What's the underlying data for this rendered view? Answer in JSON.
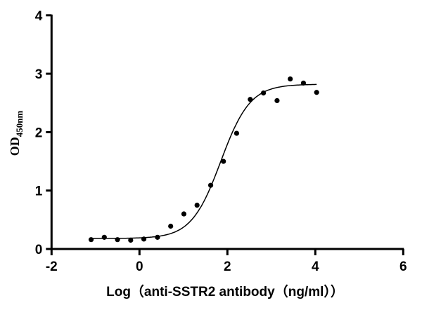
{
  "chart_data": {
    "type": "scatter",
    "title": "",
    "xlabel": "Log（anti-SSTR2 antibody（ng/ml））",
    "ylabel_main": "OD",
    "ylabel_sub": "450nm",
    "xlim": [
      -2,
      6
    ],
    "ylim": [
      0,
      4
    ],
    "xticks": [
      -2,
      0,
      2,
      4,
      6
    ],
    "yticks": [
      0,
      1,
      2,
      3,
      4
    ],
    "grid": false,
    "point_color": "#000000",
    "x": [
      -1.1,
      -0.8,
      -0.5,
      -0.2,
      0.1,
      0.41,
      0.71,
      1.01,
      1.31,
      1.62,
      1.91,
      2.21,
      2.52,
      2.82,
      3.13,
      3.43,
      3.73,
      4.03
    ],
    "y": [
      0.16,
      0.2,
      0.16,
      0.15,
      0.17,
      0.2,
      0.39,
      0.6,
      0.75,
      1.09,
      1.5,
      1.98,
      2.56,
      2.67,
      2.54,
      2.91,
      2.84,
      2.68
    ],
    "fit": {
      "model": "4PL",
      "bottom": 0.18,
      "top": 2.82,
      "logEC50": 1.85,
      "hill": 1.3,
      "x_range": [
        -1.1,
        4.03
      ]
    }
  }
}
